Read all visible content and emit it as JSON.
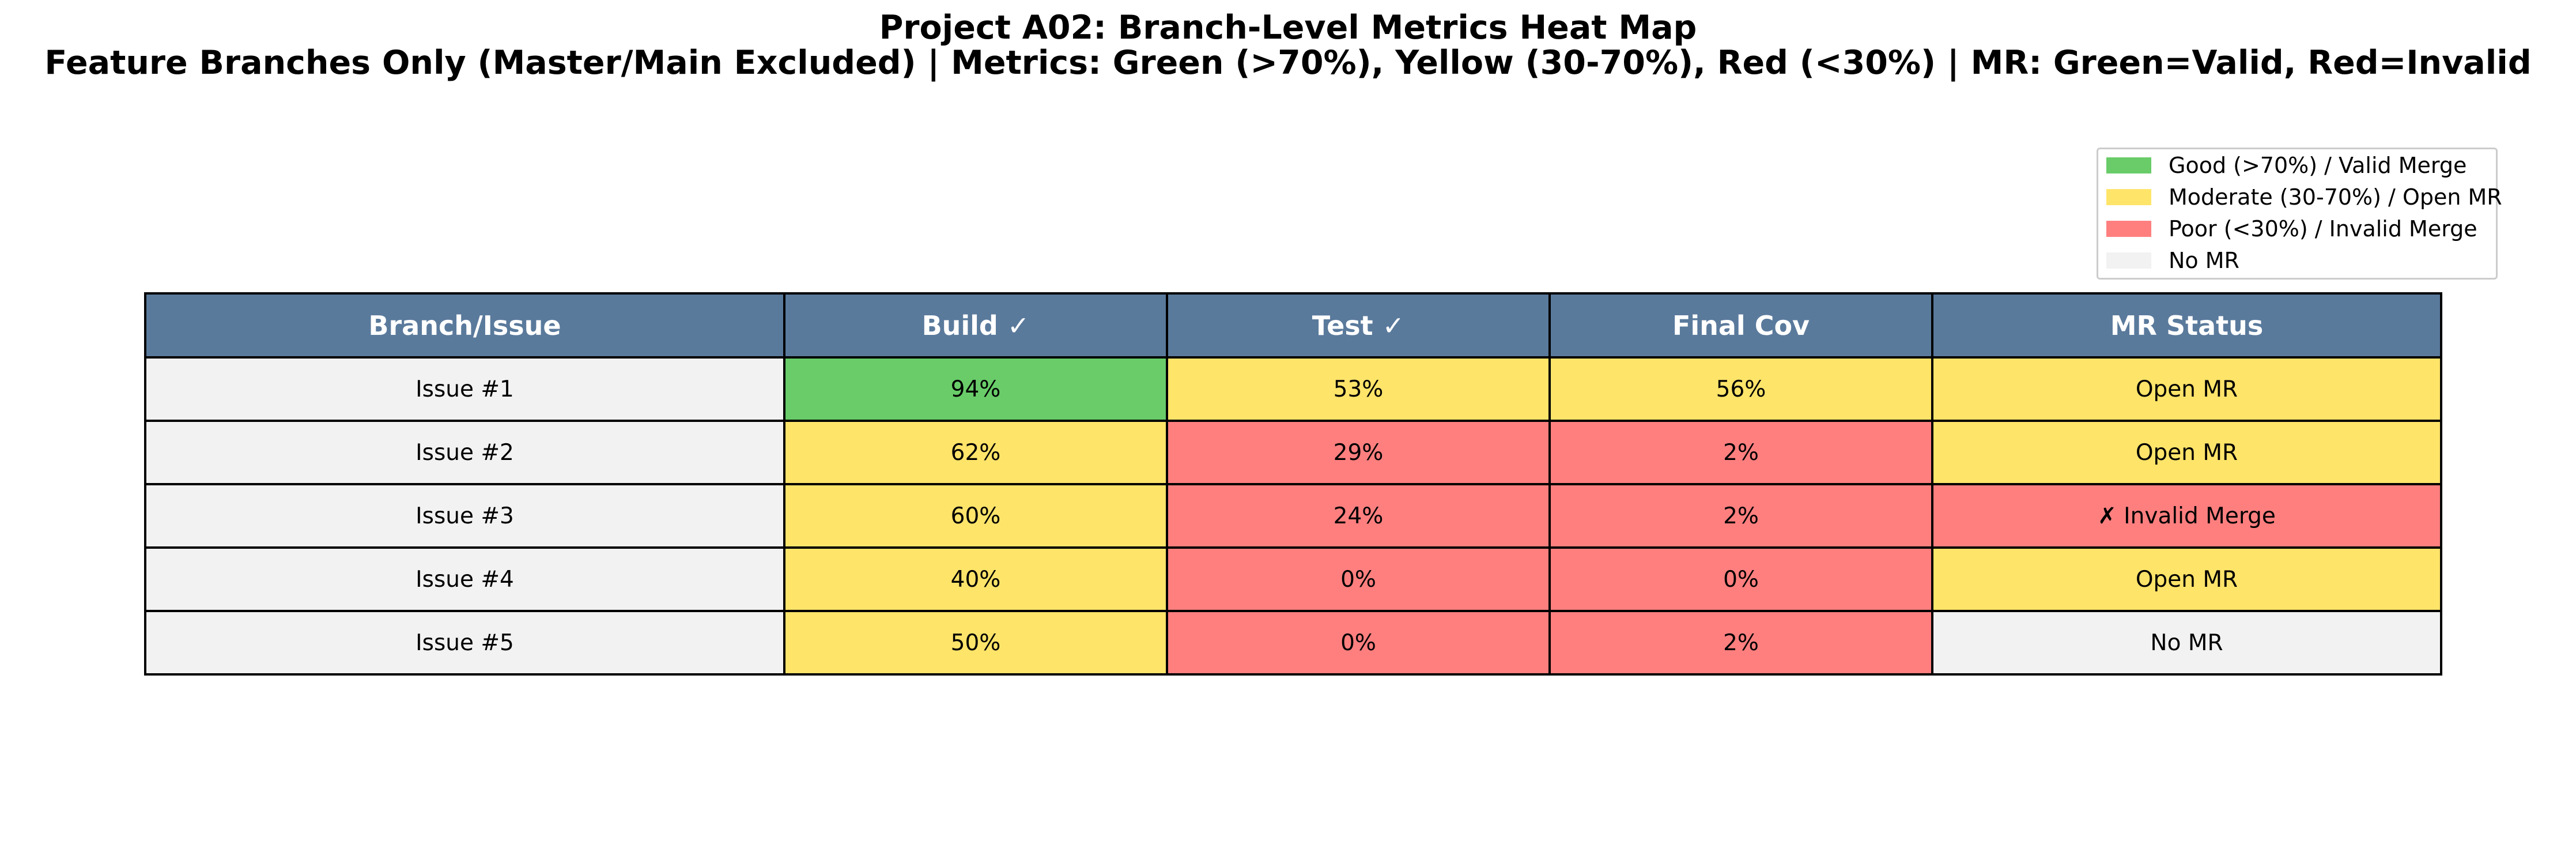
{
  "title": "Project A02: Branch-Level Metrics Heat Map",
  "subtitle": "Feature Branches Only (Master/Main Excluded) | Metrics: Green (>70%), Yellow (30-70%), Red (<30%) | MR: Green=Valid, Red=Invalid",
  "colors": {
    "header": "#5a7a9c",
    "good": "#69cc69",
    "moderate": "#ffe46a",
    "poor": "#ff7f7f",
    "neutral": "#f2f2f2"
  },
  "legend": {
    "placement": "top-right",
    "items": [
      {
        "label": "Good (>70%) / Valid Merge",
        "color": "#69cc69"
      },
      {
        "label": "Moderate (30-70%) / Open MR",
        "color": "#ffe46a"
      },
      {
        "label": "Poor (<30%) / Invalid Merge",
        "color": "#ff7f7f"
      },
      {
        "label": "No MR",
        "color": "#f2f2f2"
      }
    ]
  },
  "chart_data": {
    "type": "table",
    "columns": [
      "Branch/Issue",
      "Build ✓",
      "Test ✓",
      "Final Cov",
      "MR Status"
    ],
    "rows": [
      {
        "branch": "Issue #1",
        "build": 94,
        "test": 53,
        "final_cov": 56,
        "mr_status": "Open MR"
      },
      {
        "branch": "Issue #2",
        "build": 62,
        "test": 29,
        "final_cov": 2,
        "mr_status": "Open MR"
      },
      {
        "branch": "Issue #3",
        "build": 60,
        "test": 24,
        "final_cov": 2,
        "mr_status": "✗ Invalid Merge"
      },
      {
        "branch": "Issue #4",
        "build": 40,
        "test": 0,
        "final_cov": 0,
        "mr_status": "Open MR"
      },
      {
        "branch": "Issue #5",
        "build": 50,
        "test": 0,
        "final_cov": 2,
        "mr_status": "No MR"
      }
    ]
  }
}
